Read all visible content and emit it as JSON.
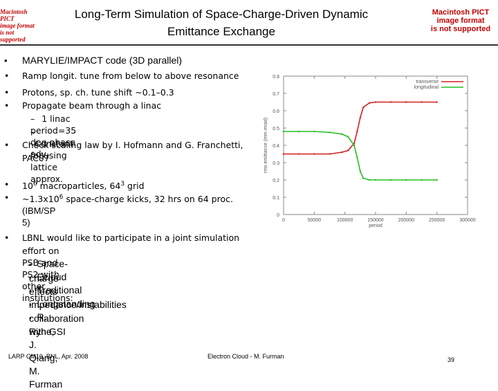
{
  "header": {
    "title_line1": "Long-Term Simulation of Space-Charge-Driven Dynamic",
    "title_line2": "Emittance Exchange",
    "pict_left": [
      "Macintosh PICT",
      "image format",
      "is not supported"
    ],
    "pict_right": [
      "Macintosh PICT",
      "image format",
      "is not supported"
    ]
  },
  "bullets": {
    "b1": "MARYLIE/IMPACT code (3D parallel)",
    "b2": "Ramp longit. tune from below to above resonance",
    "b3": "Protons, sp. ch. tune shift ~0.1–0.3",
    "b4": "Propagate beam through a linac",
    "b4_sub1": "1 linac period=35 deg phase adv.",
    "b4_sub2": "Constant focusing lattice approx.",
    "b5_line1": "Check scaling law by I. Hofmann and G. Franchetti,",
    "b5_line2": "PAC07",
    "b6_pre": "10",
    "b6_sup": "6",
    "b6_mid": " macroparticles, 64",
    "b6_sup2": "3",
    "b6_post": " grid",
    "b7_pre": "~1.3x10",
    "b7_sup": "6",
    "b7_post": " space-charge kicks, 32 hrs on 64 proc.",
    "b7_line2": "(IBM/SP 5)",
    "b8_line1": "LBNL would like to participate in a joint simulation",
    "b8_line2": "effort on PSB and PS2 with other institutions:",
    "sub_items": [
      "Space-charge effects",
      "Ecloud",
      "Traditional impedance/instabilities",
      "Longstanding collaboration with GSI",
      "R. Ryne, J. Qiang, M. Furman"
    ],
    "bullet_char": "•",
    "dash_char": "–"
  },
  "footer": {
    "left": "LARP CM10, BNL, Apr. 2008",
    "center": "Electron Cloud - M. Furman",
    "page": "39"
  },
  "chart_data": {
    "type": "line",
    "xlabel": "period",
    "ylabel": "rms emittance (mm mrad)",
    "xlim": [
      0,
      300000
    ],
    "ylim": [
      0,
      0.8
    ],
    "x_ticks": [
      "0",
      "50000",
      "100000",
      "150000",
      "200000",
      "250000",
      "300000"
    ],
    "y_ticks": [
      "0",
      "0.1",
      "0.2",
      "0.3",
      "0.4",
      "0.5",
      "0.6",
      "0.7",
      "0.8"
    ],
    "legend_position": "top-right",
    "colors": {
      "transverse": "#d42020",
      "longitudinal": "#22c022"
    },
    "series": [
      {
        "name": "transverse",
        "x": [
          0,
          25000,
          50000,
          75000,
          95000,
          105000,
          115000,
          120000,
          125000,
          130000,
          140000,
          150000,
          175000,
          200000,
          225000,
          250000
        ],
        "y": [
          0.35,
          0.35,
          0.35,
          0.35,
          0.36,
          0.37,
          0.41,
          0.48,
          0.56,
          0.62,
          0.645,
          0.65,
          0.65,
          0.65,
          0.65,
          0.65
        ]
      },
      {
        "name": "longitudinal",
        "x": [
          0,
          25000,
          50000,
          75000,
          95000,
          105000,
          115000,
          120000,
          125000,
          130000,
          140000,
          150000,
          175000,
          200000,
          225000,
          250000
        ],
        "y": [
          0.48,
          0.48,
          0.48,
          0.475,
          0.465,
          0.45,
          0.4,
          0.33,
          0.25,
          0.21,
          0.2,
          0.2,
          0.2,
          0.2,
          0.2,
          0.2
        ]
      }
    ]
  }
}
